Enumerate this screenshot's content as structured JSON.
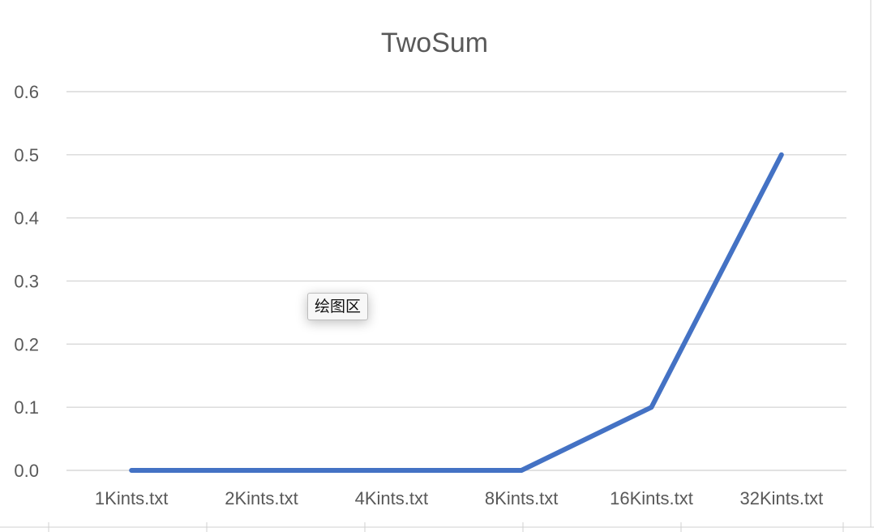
{
  "chart_data": {
    "type": "line",
    "title": "TwoSum",
    "categories": [
      "1Kints.txt",
      "2Kints.txt",
      "4Kints.txt",
      "8Kints.txt",
      "16Kints.txt",
      "32Kints.txt"
    ],
    "series": [
      {
        "values": [
          0.0,
          0.0,
          0.0,
          0.0,
          0.1,
          0.5
        ],
        "color": "#4472c4"
      }
    ],
    "yticks": [
      "0.0",
      "0.1",
      "0.2",
      "0.3",
      "0.4",
      "0.5",
      "0.6"
    ],
    "ylim": [
      0,
      0.6
    ],
    "grid": true,
    "legend": "none"
  },
  "tooltip": {
    "label": "绘图区"
  }
}
